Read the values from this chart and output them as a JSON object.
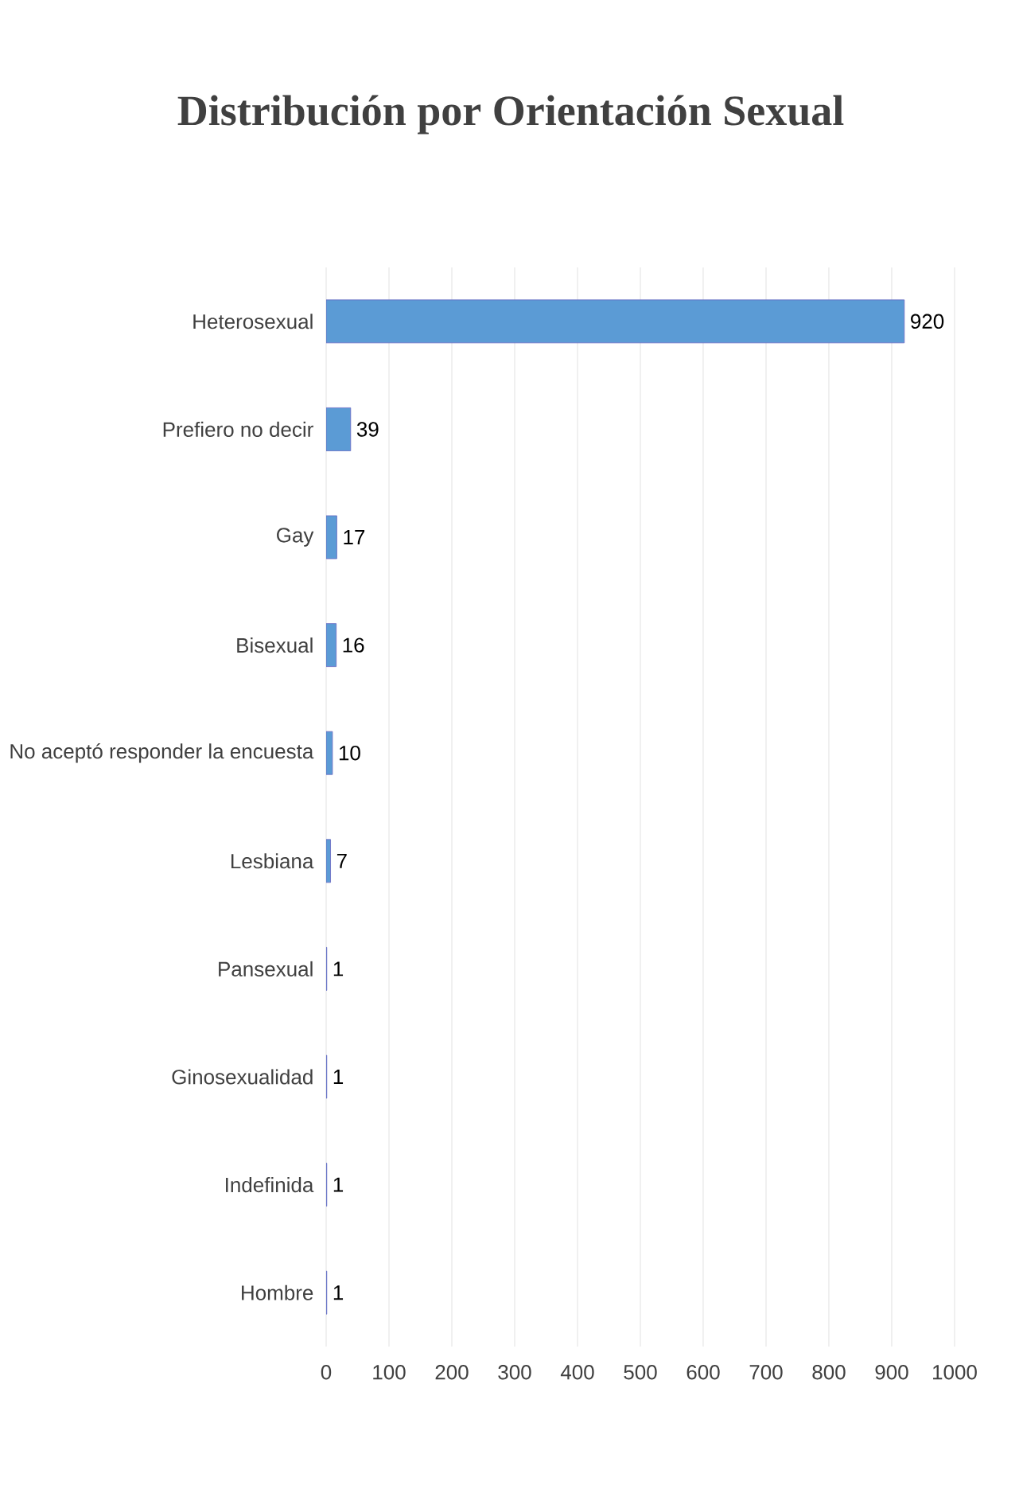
{
  "chart_data": {
    "type": "bar",
    "orientation": "horizontal",
    "title": "Distribución por Orientación Sexual",
    "categories": [
      "Heterosexual",
      "Prefiero no decir",
      "Gay",
      "Bisexual",
      "No aceptó responder la encuesta",
      "Lesbiana",
      "Pansexual",
      "Ginosexualidad",
      "Indefinida",
      "Hombre"
    ],
    "values": [
      920,
      39,
      17,
      16,
      10,
      7,
      1,
      1,
      1,
      1
    ],
    "color": "#5b9bd5",
    "xlim": [
      0,
      1000
    ],
    "xticks": [
      0,
      100,
      200,
      300,
      400,
      500,
      600,
      700,
      800,
      900,
      1000
    ],
    "grid": "x",
    "data_labels": true
  }
}
